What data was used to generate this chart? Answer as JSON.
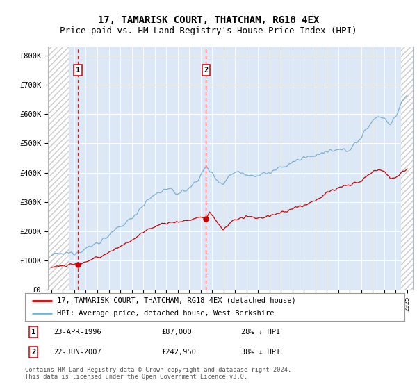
{
  "title": "17, TAMARISK COURT, THATCHAM, RG18 4EX",
  "subtitle": "Price paid vs. HM Land Registry's House Price Index (HPI)",
  "title_fontsize": 10,
  "subtitle_fontsize": 9,
  "ylabel_ticks": [
    "£0",
    "£100K",
    "£200K",
    "£300K",
    "£400K",
    "£500K",
    "£600K",
    "£700K",
    "£800K"
  ],
  "ytick_vals": [
    0,
    100000,
    200000,
    300000,
    400000,
    500000,
    600000,
    700000,
    800000
  ],
  "ylim": [
    0,
    830000
  ],
  "xlim_start": 1993.7,
  "xlim_end": 2025.5,
  "hpi_color": "#7ab0d4",
  "price_color": "#cc0000",
  "sale1_x": 1996.31,
  "sale1_price": 87000,
  "sale1_date": "23-APR-1996",
  "sale1_label": "28% ↓ HPI",
  "sale2_x": 2007.47,
  "sale2_price": 242950,
  "sale2_date": "22-JUN-2007",
  "sale2_label": "38% ↓ HPI",
  "legend_line1": "17, TAMARISK COURT, THATCHAM, RG18 4EX (detached house)",
  "legend_line2": "HPI: Average price, detached house, West Berkshire",
  "footnote": "Contains HM Land Registry data © Crown copyright and database right 2024.\nThis data is licensed under the Open Government Licence v3.0.",
  "plot_bg_color": "#dce8f5",
  "grid_color": "#ffffff",
  "hatch_color": "#c8c8c8"
}
